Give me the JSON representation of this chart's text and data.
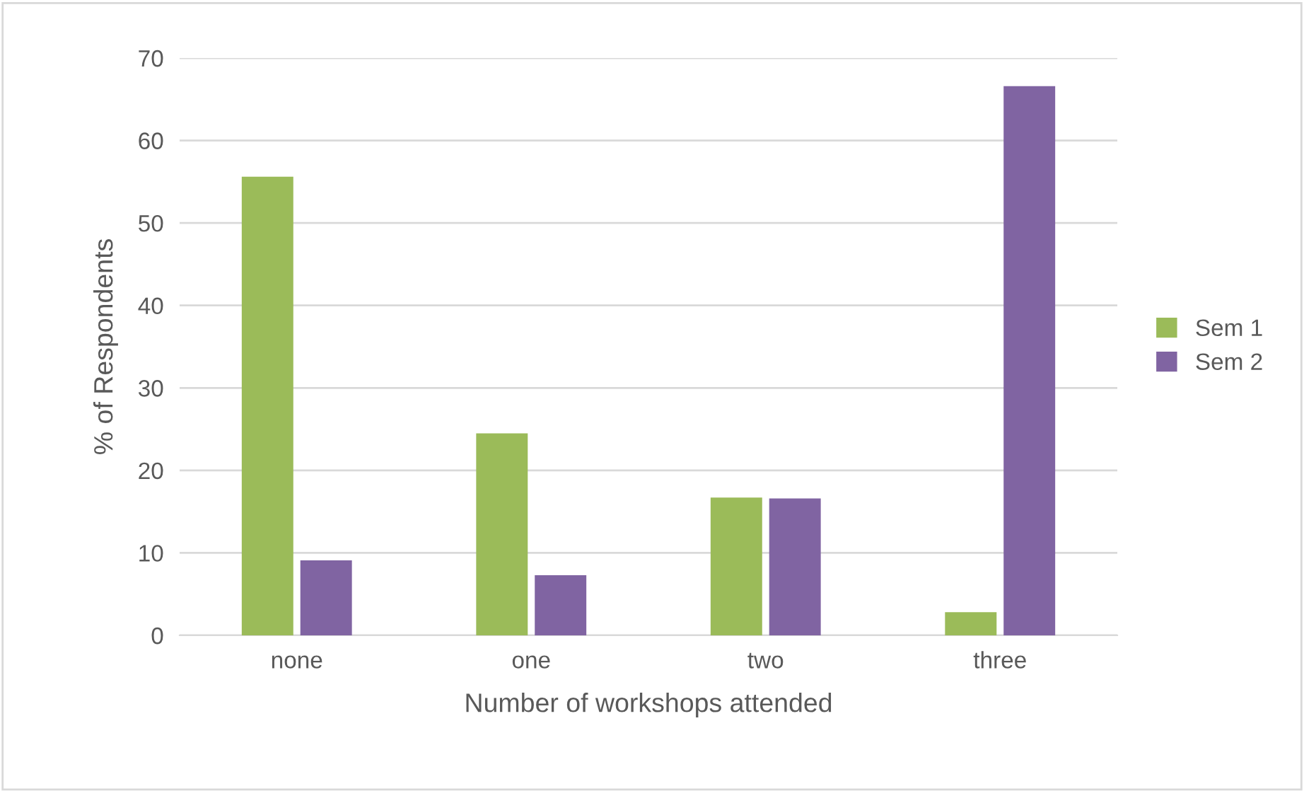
{
  "chart_data": {
    "type": "bar",
    "xlabel": "Number of workshops attended",
    "ylabel": "% of Respondents",
    "categories": [
      "none",
      "one",
      "two",
      "three"
    ],
    "series": [
      {
        "name": "Sem 1",
        "color": "#9bbb59",
        "values": [
          55.6,
          24.5,
          16.7,
          2.8
        ]
      },
      {
        "name": "Sem 2",
        "color": "#8064a2",
        "values": [
          9.1,
          7.3,
          16.6,
          66.6
        ]
      }
    ],
    "ylim": [
      0,
      70
    ],
    "yticks": [
      0,
      10,
      20,
      30,
      40,
      50,
      60,
      70
    ],
    "grid": "y",
    "legend": "right"
  }
}
